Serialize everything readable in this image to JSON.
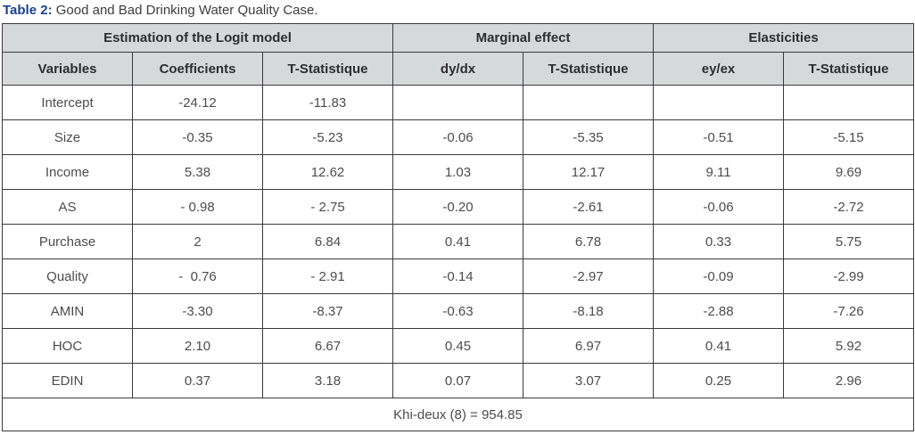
{
  "caption": {
    "label": "Table 2:",
    "text": " Good and Bad Drinking Water Quality Case."
  },
  "table": {
    "group_headers": [
      {
        "label": "Estimation of the Logit model"
      },
      {
        "label": "Marginal effect"
      },
      {
        "label": "Elasticities"
      }
    ],
    "column_headers": [
      "Variables",
      "Coefficients",
      "T-Statistique",
      "dy/dx",
      "T-Statistique",
      "ey/ex",
      "T-Statistique"
    ],
    "rows": [
      [
        "Intercept",
        "-24.12",
        "-11.83",
        "",
        "",
        "",
        ""
      ],
      [
        "Size",
        "-0.35",
        "-5.23",
        "-0.06",
        "-5.35",
        "-0.51",
        "-5.15"
      ],
      [
        "Income",
        "5.38",
        "12.62",
        "1.03",
        "12.17",
        "9.11",
        "9.69"
      ],
      [
        "AS",
        "- 0.98",
        "- 2.75",
        "-0.20",
        "-2.61",
        "-0.06",
        "-2.72"
      ],
      [
        "Purchase",
        "2",
        "6.84",
        "0.41",
        "6.78",
        "0.33",
        "5.75"
      ],
      [
        "Quality",
        "-  0.76",
        "- 2.91",
        "-0.14",
        "-2.97",
        "-0.09",
        "-2.99"
      ],
      [
        "AMIN",
        "-3.30",
        "-8.37",
        "-0.63",
        "-8.18",
        "-2.88",
        "-7.26"
      ],
      [
        "HOC",
        "2.10",
        "6.67",
        "0.45",
        "6.97",
        "0.41",
        "5.92"
      ],
      [
        "EDIN",
        "0.37",
        "3.18",
        "0.07",
        "3.07",
        "0.25",
        "2.96"
      ]
    ],
    "footer": "Khi-deux (8) = 954.85"
  },
  "colors": {
    "caption_accent": "#1c3f94",
    "header_bg": "#d5d9d9",
    "border": "#3a3a3a",
    "body_text": "#4c4c4c"
  }
}
